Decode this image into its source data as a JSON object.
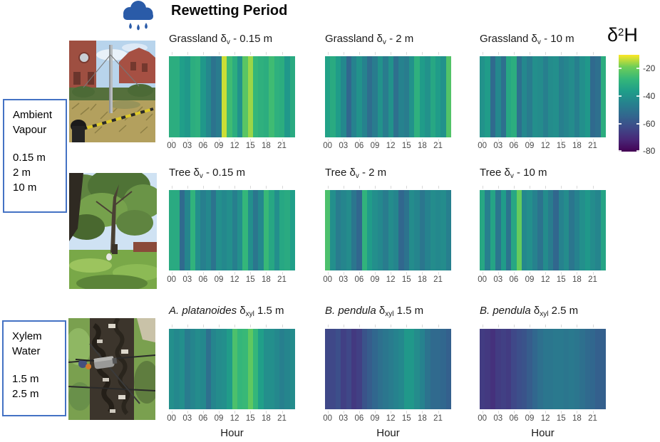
{
  "header": {
    "title": "Rewetting Period"
  },
  "side_labels": [
    {
      "lines": [
        "Ambient",
        "Vapour",
        "",
        "0.15 m",
        "2 m",
        "10 m"
      ]
    },
    {
      "lines": [
        "Xylem",
        "Water",
        "",
        "1.5 m",
        "2.5 m"
      ]
    }
  ],
  "legend": {
    "title": {
      "d": "δ",
      "sup": "2",
      "h": "H"
    },
    "tick_labels": [
      "-20",
      "-40",
      "-60",
      "-80"
    ],
    "tick_values": [
      -20,
      -40,
      -60,
      -80
    ],
    "domain": [
      -80,
      -10
    ],
    "viridis_stops": [
      [
        0.0,
        "#440154"
      ],
      [
        0.125,
        "#482878"
      ],
      [
        0.25,
        "#3e4a89"
      ],
      [
        0.375,
        "#31688e"
      ],
      [
        0.5,
        "#26828e"
      ],
      [
        0.625,
        "#1f9e89"
      ],
      [
        0.75,
        "#35b779"
      ],
      [
        0.875,
        "#6ece58"
      ],
      [
        1.0,
        "#fde725"
      ]
    ]
  },
  "chart_data": {
    "type": "heatmap",
    "x_tick_hours": [
      0,
      3,
      6,
      9,
      12,
      15,
      18,
      21
    ],
    "x_tick_labels": [
      "00",
      "03",
      "06",
      "09",
      "12",
      "15",
      "18",
      "21"
    ],
    "xlabel": "Hour",
    "value_unit": "δ²H",
    "colorbar_range": [
      -80,
      -10
    ],
    "panels": [
      {
        "row": 0,
        "col": 0,
        "show_xlabel": false,
        "title": {
          "pre": "Grassland ",
          "pre_italic": false,
          "delta": "δ",
          "sub": "v",
          "post": " - 0.15 m"
        },
        "hours": [
          0,
          1,
          2,
          3,
          4,
          5,
          6,
          7,
          8,
          9,
          10,
          11,
          12,
          13,
          14,
          15,
          16,
          17,
          18,
          19,
          20,
          21,
          22,
          23
        ],
        "values": [
          -31,
          -31,
          -36,
          -38,
          -31,
          -30,
          -38,
          -43,
          -50,
          -47,
          -13,
          -26,
          -31,
          -40,
          -22,
          -16,
          -28,
          -30,
          -31,
          -26,
          -30,
          -31,
          -38,
          -32
        ]
      },
      {
        "row": 0,
        "col": 1,
        "show_xlabel": false,
        "title": {
          "pre": "Grassland ",
          "pre_italic": false,
          "delta": "δ",
          "sub": "v",
          "post": " - 2 m"
        },
        "hours": [
          0,
          1,
          2,
          3,
          4,
          5,
          6,
          7,
          8,
          9,
          10,
          11,
          12,
          13,
          14,
          15,
          16,
          17,
          18,
          19,
          20,
          21,
          22,
          23
        ],
        "values": [
          -35,
          -32,
          -37,
          -43,
          -54,
          -45,
          -40,
          -45,
          -52,
          -47,
          -40,
          -47,
          -40,
          -51,
          -45,
          -47,
          -40,
          -30,
          -37,
          -40,
          -33,
          -37,
          -40,
          -23
        ]
      },
      {
        "row": 0,
        "col": 2,
        "show_xlabel": false,
        "title": {
          "pre": "Grassland ",
          "pre_italic": false,
          "delta": "δ",
          "sub": "v",
          "post": " - 10 m"
        },
        "hours": [
          0,
          1,
          2,
          3,
          4,
          5,
          6,
          7,
          8,
          9,
          10,
          11,
          12,
          13,
          14,
          15,
          16,
          17,
          18,
          19,
          20,
          21,
          22,
          23
        ],
        "values": [
          -40,
          -37,
          -53,
          -43,
          -51,
          -33,
          -31,
          -51,
          -43,
          -47,
          -41,
          -42,
          -46,
          -42,
          -41,
          -46,
          -44,
          -42,
          -46,
          -41,
          -38,
          -53,
          -51,
          -31
        ]
      },
      {
        "row": 1,
        "col": 0,
        "show_xlabel": false,
        "title": {
          "pre": "Tree ",
          "pre_italic": false,
          "delta": "δ",
          "sub": "v",
          "post": " - 0.15 m"
        },
        "hours": [
          0,
          1,
          2,
          3,
          4,
          5,
          6,
          7,
          8,
          9,
          10,
          11,
          12,
          13,
          14,
          15,
          16,
          17,
          18,
          19,
          20,
          21,
          22,
          23
        ],
        "values": [
          -32,
          -32,
          -53,
          -44,
          -29,
          -41,
          -46,
          -43,
          -50,
          -41,
          -43,
          -41,
          -46,
          -41,
          -28,
          -41,
          -49,
          -43,
          -27,
          -33,
          -41,
          -33,
          -32,
          -36
        ]
      },
      {
        "row": 1,
        "col": 1,
        "show_xlabel": false,
        "title": {
          "pre": "Tree ",
          "pre_italic": false,
          "delta": "δ",
          "sub": "v",
          "post": " - 2 m"
        },
        "hours": [
          0,
          1,
          2,
          3,
          4,
          5,
          6,
          7,
          8,
          9,
          10,
          11,
          12,
          13,
          14,
          15,
          16,
          17,
          18,
          19,
          20,
          21,
          22,
          23
        ],
        "values": [
          -24,
          -41,
          -47,
          -44,
          -42,
          -49,
          -54,
          -29,
          -37,
          -41,
          -43,
          -47,
          -42,
          -44,
          -54,
          -50,
          -42,
          -44,
          -49,
          -45,
          -42,
          -43,
          -42,
          -46
        ]
      },
      {
        "row": 1,
        "col": 2,
        "show_xlabel": false,
        "title": {
          "pre": "Tree ",
          "pre_italic": false,
          "delta": "δ",
          "sub": "v",
          "post": " - 10 m"
        },
        "hours": [
          0,
          1,
          2,
          3,
          4,
          5,
          6,
          7,
          8,
          9,
          10,
          11,
          12,
          13,
          14,
          15,
          16,
          17,
          18,
          19,
          20,
          21,
          22,
          23
        ],
        "values": [
          -33,
          -46,
          -34,
          -49,
          -37,
          -50,
          -33,
          -20,
          -43,
          -41,
          -45,
          -50,
          -42,
          -47,
          -54,
          -45,
          -42,
          -49,
          -45,
          -41,
          -38,
          -42,
          -44,
          -34
        ]
      },
      {
        "row": 2,
        "col": 0,
        "show_xlabel": true,
        "title": {
          "pre": "A. platanoides ",
          "pre_italic": true,
          "delta": "δ",
          "sub": "xyl",
          "post": " 1.5 m"
        },
        "hours": [
          0,
          1,
          2,
          3,
          4,
          5,
          6,
          7,
          8,
          9,
          10,
          11,
          12,
          13,
          14,
          15,
          16,
          17,
          18,
          19,
          20,
          21,
          22,
          23
        ],
        "values": [
          -41,
          -43,
          -41,
          -47,
          -44,
          -42,
          -43,
          -51,
          -44,
          -42,
          -41,
          -37,
          -24,
          -28,
          -27,
          -21,
          -28,
          -36,
          -41,
          -41,
          -43,
          -46,
          -44,
          -42
        ]
      },
      {
        "row": 2,
        "col": 1,
        "show_xlabel": true,
        "title": {
          "pre": "B. pendula ",
          "pre_italic": true,
          "delta": "δ",
          "sub": "xyl",
          "post": " 1.5 m"
        },
        "hours": [
          0,
          1,
          2,
          3,
          4,
          5,
          6,
          7,
          8,
          9,
          10,
          11,
          12,
          13,
          14,
          15,
          16,
          17,
          18,
          19,
          20,
          21,
          22,
          23
        ],
        "values": [
          -63,
          -63,
          -61,
          -65,
          -63,
          -67,
          -65,
          -60,
          -57,
          -54,
          -51,
          -49,
          -47,
          -45,
          -43,
          -38,
          -38,
          -42,
          -45,
          -50,
          -53,
          -53,
          -54,
          -56
        ]
      },
      {
        "row": 2,
        "col": 2,
        "show_xlabel": true,
        "title": {
          "pre": "B. pendula ",
          "pre_italic": true,
          "delta": "δ",
          "sub": "xyl",
          "post": " 2.5 m"
        },
        "hours": [
          0,
          1,
          2,
          3,
          4,
          5,
          6,
          7,
          8,
          9,
          10,
          11,
          12,
          13,
          14,
          15,
          16,
          17,
          18,
          19,
          20,
          21,
          22,
          23
        ],
        "values": [
          -66,
          -67,
          -69,
          -66,
          -65,
          -66,
          -63,
          -61,
          -60,
          -57,
          -54,
          -51,
          -49,
          -49,
          -48,
          -48,
          -49,
          -48,
          -49,
          -51,
          -53,
          -54,
          -56,
          -56
        ]
      }
    ]
  }
}
